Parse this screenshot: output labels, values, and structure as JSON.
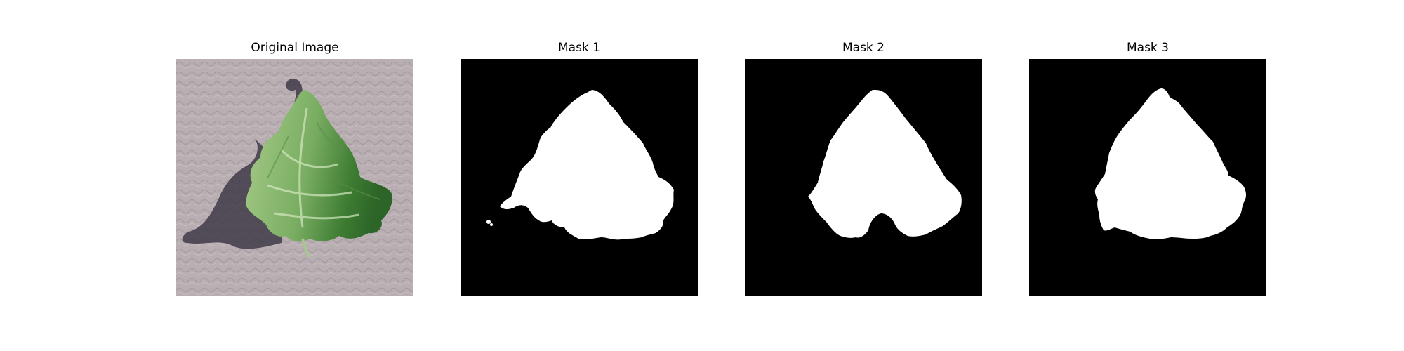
{
  "figure": {
    "panels": [
      {
        "title": "Original Image"
      },
      {
        "title": "Mask 1"
      },
      {
        "title": "Mask 2"
      },
      {
        "title": "Mask 3"
      }
    ],
    "colors": {
      "background": "#ffffff",
      "mask_background": "#000000",
      "mask_foreground": "#ffffff",
      "ground": "#b7acb0",
      "ground_pattern": "#a39aa0",
      "leaf_light": "#9cc27e",
      "leaf_mid": "#6ea45a",
      "leaf_dark": "#2f6e2a",
      "shadow": "#3f3a48"
    }
  }
}
